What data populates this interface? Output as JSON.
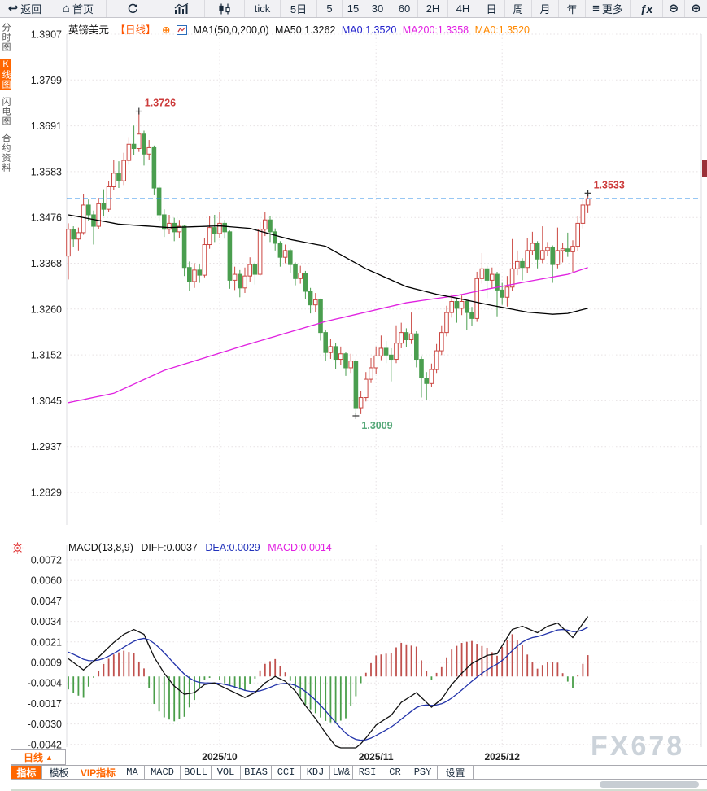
{
  "toolbar": {
    "items": [
      {
        "name": "back-button",
        "label": "返回",
        "glyph": "↩",
        "w": 62
      },
      {
        "name": "home-button",
        "label": "首页",
        "glyph": "⌂",
        "w": 69
      },
      {
        "name": "refresh-button",
        "svg": "refresh",
        "w": 65
      },
      {
        "name": "bar-chart-button",
        "svg": "bars",
        "w": 56
      },
      {
        "name": "candlestick-button",
        "svg": "candles",
        "w": 49
      },
      {
        "name": "tick-button",
        "label": "tick",
        "w": 44
      },
      {
        "name": "period-5d-button",
        "label": "5日",
        "w": 45
      },
      {
        "name": "period-5-button",
        "label": "5",
        "w": 31
      },
      {
        "name": "period-15-button",
        "label": "15",
        "w": 27
      },
      {
        "name": "period-30-button",
        "label": "30",
        "w": 33
      },
      {
        "name": "period-60-button",
        "label": "60",
        "w": 33
      },
      {
        "name": "period-2h-button",
        "label": "2H",
        "w": 37
      },
      {
        "name": "period-4h-button",
        "label": "4H",
        "w": 37
      },
      {
        "name": "period-day-button",
        "label": "日",
        "w": 33
      },
      {
        "name": "period-week-button",
        "label": "周",
        "w": 33
      },
      {
        "name": "period-month-button",
        "label": "月",
        "w": 33
      },
      {
        "name": "period-year-button",
        "label": "年",
        "w": 33
      },
      {
        "name": "more-button",
        "label": "更多",
        "glyph": "≡",
        "w": 55
      },
      {
        "name": "fx-button",
        "label": "ƒx",
        "fx": true,
        "w": 40
      },
      {
        "name": "zoom-out-button",
        "glyph": "⊖",
        "w": 27
      },
      {
        "name": "zoom-in-button",
        "glyph": "⊕",
        "w": 27
      }
    ]
  },
  "sidebar": {
    "items": [
      {
        "label": "分时图",
        "selected": false
      },
      {
        "label": "K线图",
        "selected": true
      },
      {
        "label": "闪电图",
        "selected": false
      },
      {
        "label": "合约资料",
        "selected": false
      }
    ]
  },
  "chart_header": {
    "symbol": "英镑美元",
    "period": "【日线】",
    "add_icon": "⊕",
    "ma_settings": "MA1(50,0,200,0)",
    "ma50": "MA50:1.3262",
    "ma0_blue": "MA0:1.3520",
    "ma200": "MA200:1.3358",
    "ma0_orange": "MA0:1.3520"
  },
  "macd_header": {
    "title": "MACD(13,8,9)",
    "diff": "DIFF:0.0037",
    "dea": "DEA:0.0029",
    "macd": "MACD:0.0014"
  },
  "period_tab": {
    "label": "日线",
    "arrow": "▲"
  },
  "bottom_tabs": [
    {
      "label": "指标",
      "style": "sel",
      "w": 38
    },
    {
      "label": "模板",
      "style": "",
      "w": 42
    },
    {
      "label": "VIP指标",
      "style": "vip",
      "w": 54
    },
    {
      "label": "MA",
      "style": "",
      "w": 30
    },
    {
      "label": "MACD",
      "style": "",
      "w": 44
    },
    {
      "label": "BOLL",
      "style": "",
      "w": 38
    },
    {
      "label": "VOL",
      "style": "",
      "w": 36
    },
    {
      "label": "BIAS",
      "style": "",
      "w": 38
    },
    {
      "label": "CCI",
      "style": "",
      "w": 36
    },
    {
      "label": "KDJ",
      "style": "",
      "w": 36
    },
    {
      "label": "LW&",
      "style": "",
      "w": 28
    },
    {
      "label": "RSI",
      "style": "",
      "w": 36
    },
    {
      "label": "CR",
      "style": "",
      "w": 32
    },
    {
      "label": "PSY",
      "style": "",
      "w": 36
    },
    {
      "label": "设置",
      "style": "",
      "w": 44
    }
  ],
  "watermark": "FX678",
  "colors": {
    "candle_up": "#cb4742",
    "candle_down": "#4a9e4f",
    "ma50": "#000000",
    "ma200": "#e020e0",
    "dea_blue": "#2233aa",
    "diff_black": "#111111",
    "price_line_blue": "#2f8fe8",
    "annotation_red": "#cc3b3b",
    "annotation_green": "#55a878",
    "hist_up": "#c0504d",
    "hist_down": "#4a9e4a",
    "grid": "#e7e2e4",
    "tick_text": "#222222"
  },
  "chart_data": {
    "type": "candlestick",
    "title": "英镑美元 日线 (GBP/USD Daily)",
    "y_ticks": [
      "1.3907",
      "1.3799",
      "1.3691",
      "1.3583",
      "1.3476",
      "1.3368",
      "1.3260",
      "1.3152",
      "1.3045",
      "1.2937",
      "1.2829"
    ],
    "macd_ticks": [
      "0.0072",
      "0.0060",
      "0.0047",
      "0.0034",
      "0.0021",
      "0.0009",
      "-0.0004",
      "-0.0017",
      "-0.0030",
      "-0.0042"
    ],
    "x_labels": [
      {
        "text": "2025/10",
        "index": 30
      },
      {
        "text": "2025/11",
        "index": 61
      },
      {
        "text": "2025/12",
        "index": 86
      }
    ],
    "last_price": 1.352,
    "annotations": [
      {
        "text": "1.3726",
        "index": 14,
        "price": 1.3726,
        "type": "high",
        "color": "red"
      },
      {
        "text": "1.3009",
        "index": 57,
        "price": 1.3009,
        "type": "low",
        "color": "green"
      },
      {
        "text": "1.3533",
        "index": 103,
        "price": 1.3533,
        "type": "high",
        "color": "red"
      }
    ],
    "candles": [
      [
        1.3385,
        1.3462,
        1.333,
        1.3448
      ],
      [
        1.3448,
        1.3455,
        1.3406,
        1.3425
      ],
      [
        1.3425,
        1.3452,
        1.3398,
        1.344
      ],
      [
        1.344,
        1.353,
        1.3435,
        1.3505
      ],
      [
        1.3505,
        1.3518,
        1.3468,
        1.3482
      ],
      [
        1.3482,
        1.3492,
        1.3412,
        1.3455
      ],
      [
        1.3455,
        1.3522,
        1.3448,
        1.3508
      ],
      [
        1.3508,
        1.3542,
        1.3478,
        1.3495
      ],
      [
        1.3495,
        1.3562,
        1.3488,
        1.3548
      ],
      [
        1.3548,
        1.3612,
        1.354,
        1.358
      ],
      [
        1.358,
        1.3608,
        1.3545,
        1.3562
      ],
      [
        1.3562,
        1.3628,
        1.3552,
        1.361
      ],
      [
        1.361,
        1.3665,
        1.36,
        1.3648
      ],
      [
        1.3648,
        1.3692,
        1.3622,
        1.3638
      ],
      [
        1.3638,
        1.3726,
        1.363,
        1.3672
      ],
      [
        1.3672,
        1.368,
        1.3598,
        1.3625
      ],
      [
        1.3625,
        1.3658,
        1.3612,
        1.364
      ],
      [
        1.364,
        1.3645,
        1.3528,
        1.3545
      ],
      [
        1.3545,
        1.3552,
        1.3468,
        1.3482
      ],
      [
        1.3482,
        1.3495,
        1.343,
        1.3448
      ],
      [
        1.3448,
        1.3482,
        1.3438,
        1.3462
      ],
      [
        1.3462,
        1.3475,
        1.342,
        1.3442
      ],
      [
        1.3442,
        1.347,
        1.3428,
        1.3455
      ],
      [
        1.3455,
        1.3458,
        1.3338,
        1.3358
      ],
      [
        1.3358,
        1.3372,
        1.3302,
        1.3325
      ],
      [
        1.3325,
        1.3368,
        1.331,
        1.3352
      ],
      [
        1.3352,
        1.3365,
        1.3322,
        1.334
      ],
      [
        1.334,
        1.3428,
        1.3335,
        1.3412
      ],
      [
        1.3412,
        1.3478,
        1.3402,
        1.3452
      ],
      [
        1.3452,
        1.3482,
        1.3418,
        1.3438
      ],
      [
        1.3438,
        1.3488,
        1.3428,
        1.3462
      ],
      [
        1.3462,
        1.347,
        1.3426,
        1.3442
      ],
      [
        1.3442,
        1.3445,
        1.3308,
        1.3328
      ],
      [
        1.3328,
        1.336,
        1.3305,
        1.3342
      ],
      [
        1.3342,
        1.3352,
        1.3288,
        1.331
      ],
      [
        1.331,
        1.3358,
        1.3298,
        1.3338
      ],
      [
        1.3338,
        1.3382,
        1.3325,
        1.3365
      ],
      [
        1.3365,
        1.3372,
        1.3318,
        1.3342
      ],
      [
        1.3342,
        1.3465,
        1.3338,
        1.3448
      ],
      [
        1.3448,
        1.3488,
        1.3432,
        1.347
      ],
      [
        1.347,
        1.3478,
        1.3418,
        1.3442
      ],
      [
        1.3442,
        1.345,
        1.3398,
        1.3415
      ],
      [
        1.3415,
        1.342,
        1.336,
        1.3382
      ],
      [
        1.3382,
        1.3412,
        1.3368,
        1.3398
      ],
      [
        1.3398,
        1.3402,
        1.3345,
        1.3365
      ],
      [
        1.3365,
        1.337,
        1.3316,
        1.3332
      ],
      [
        1.3332,
        1.3362,
        1.332,
        1.3345
      ],
      [
        1.3345,
        1.335,
        1.3283,
        1.3302
      ],
      [
        1.3302,
        1.331,
        1.325,
        1.327
      ],
      [
        1.327,
        1.3298,
        1.3253,
        1.3282
      ],
      [
        1.3282,
        1.3285,
        1.3186,
        1.3205
      ],
      [
        1.3205,
        1.3212,
        1.3138,
        1.3158
      ],
      [
        1.3158,
        1.319,
        1.3143,
        1.3172
      ],
      [
        1.3172,
        1.318,
        1.312,
        1.3142
      ],
      [
        1.3142,
        1.3172,
        1.3128,
        1.3155
      ],
      [
        1.3155,
        1.316,
        1.3103,
        1.3122
      ],
      [
        1.3122,
        1.3155,
        1.311,
        1.3138
      ],
      [
        1.3138,
        1.3142,
        1.3009,
        1.3028
      ],
      [
        1.3028,
        1.3068,
        1.3013,
        1.3052
      ],
      [
        1.3052,
        1.3112,
        1.3043,
        1.3095
      ],
      [
        1.3095,
        1.3145,
        1.3086,
        1.3122
      ],
      [
        1.3122,
        1.3172,
        1.3108,
        1.315
      ],
      [
        1.315,
        1.3198,
        1.314,
        1.3168
      ],
      [
        1.3168,
        1.3185,
        1.3133,
        1.3152
      ],
      [
        1.3152,
        1.3168,
        1.309,
        1.3142
      ],
      [
        1.3142,
        1.3222,
        1.3133,
        1.318
      ],
      [
        1.318,
        1.3228,
        1.3168,
        1.3205
      ],
      [
        1.3205,
        1.3215,
        1.317,
        1.3188
      ],
      [
        1.3188,
        1.3252,
        1.3178,
        1.3202
      ],
      [
        1.3202,
        1.3208,
        1.3123,
        1.3142
      ],
      [
        1.3142,
        1.3148,
        1.3052,
        1.3098
      ],
      [
        1.3098,
        1.3112,
        1.3046,
        1.3085
      ],
      [
        1.3085,
        1.3132,
        1.3076,
        1.3118
      ],
      [
        1.3118,
        1.3178,
        1.311,
        1.3162
      ],
      [
        1.3162,
        1.3222,
        1.3152,
        1.3205
      ],
      [
        1.3205,
        1.3268,
        1.3196,
        1.3252
      ],
      [
        1.3252,
        1.3295,
        1.324,
        1.3278
      ],
      [
        1.3278,
        1.3285,
        1.3228,
        1.3262
      ],
      [
        1.3262,
        1.3292,
        1.3246,
        1.3278
      ],
      [
        1.3278,
        1.3282,
        1.321,
        1.3252
      ],
      [
        1.3252,
        1.3265,
        1.322,
        1.3238
      ],
      [
        1.3238,
        1.3348,
        1.323,
        1.3332
      ],
      [
        1.3332,
        1.3392,
        1.332,
        1.3355
      ],
      [
        1.3355,
        1.3362,
        1.3286,
        1.3328
      ],
      [
        1.3328,
        1.3358,
        1.331,
        1.3342
      ],
      [
        1.3342,
        1.3348,
        1.3243,
        1.3305
      ],
      [
        1.3305,
        1.3322,
        1.327,
        1.3288
      ],
      [
        1.3288,
        1.3338,
        1.3266,
        1.3312
      ],
      [
        1.3312,
        1.3425,
        1.3303,
        1.3355
      ],
      [
        1.3355,
        1.3398,
        1.334,
        1.3372
      ],
      [
        1.3372,
        1.338,
        1.3328,
        1.3358
      ],
      [
        1.3358,
        1.3428,
        1.3346,
        1.3398
      ],
      [
        1.3398,
        1.3442,
        1.3388,
        1.3415
      ],
      [
        1.3415,
        1.342,
        1.3356,
        1.3378
      ],
      [
        1.3378,
        1.3455,
        1.3368,
        1.3398
      ],
      [
        1.3398,
        1.3418,
        1.3386,
        1.3405
      ],
      [
        1.3405,
        1.341,
        1.3322,
        1.3365
      ],
      [
        1.3365,
        1.3452,
        1.3356,
        1.3398
      ],
      [
        1.3398,
        1.3415,
        1.337,
        1.3402
      ],
      [
        1.3402,
        1.344,
        1.3383,
        1.3395
      ],
      [
        1.3395,
        1.3422,
        1.3348,
        1.3408
      ],
      [
        1.3408,
        1.3478,
        1.3396,
        1.3462
      ],
      [
        1.3462,
        1.3518,
        1.345,
        1.3505
      ],
      [
        1.3505,
        1.3533,
        1.3486,
        1.352
      ]
    ],
    "ma50_points": [
      [
        0,
        1.3482
      ],
      [
        10,
        1.346
      ],
      [
        20,
        1.3452
      ],
      [
        30,
        1.3456
      ],
      [
        36,
        1.345
      ],
      [
        44,
        1.3424
      ],
      [
        51,
        1.3408
      ],
      [
        59,
        1.3355
      ],
      [
        67,
        1.3313
      ],
      [
        73,
        1.3295
      ],
      [
        77,
        1.3286
      ],
      [
        83,
        1.3271
      ],
      [
        91,
        1.3253
      ],
      [
        96,
        1.3248
      ],
      [
        99,
        1.325
      ],
      [
        103,
        1.3262
      ]
    ],
    "ma200_points": [
      [
        0,
        1.304
      ],
      [
        9,
        1.3062
      ],
      [
        19,
        1.3116
      ],
      [
        35,
        1.3175
      ],
      [
        51,
        1.3231
      ],
      [
        67,
        1.3275
      ],
      [
        77,
        1.3292
      ],
      [
        83,
        1.3307
      ],
      [
        91,
        1.3325
      ],
      [
        99,
        1.3342
      ],
      [
        103,
        1.3358
      ]
    ],
    "macd": {
      "diff_points": [
        [
          0,
          0.0011
        ],
        [
          3,
          0.0004
        ],
        [
          6,
          0.0012
        ],
        [
          9,
          0.0021
        ],
        [
          11,
          0.0026
        ],
        [
          13,
          0.0029
        ],
        [
          15,
          0.0026
        ],
        [
          17,
          0.0012
        ],
        [
          19,
          0.0002
        ],
        [
          21,
          -0.0006
        ],
        [
          23,
          -0.0011
        ],
        [
          25,
          -0.001
        ],
        [
          27,
          -0.0005
        ],
        [
          29,
          -0.0004
        ],
        [
          31,
          -0.0007
        ],
        [
          33,
          -0.001
        ],
        [
          35,
          -0.0013
        ],
        [
          37,
          -0.001
        ],
        [
          39,
          -0.0004
        ],
        [
          41,
          0.0
        ],
        [
          43,
          -0.0003
        ],
        [
          45,
          -0.0009
        ],
        [
          47,
          -0.0018
        ],
        [
          49,
          -0.0026
        ],
        [
          51,
          -0.0035
        ],
        [
          53,
          -0.0043
        ],
        [
          55,
          -0.0048
        ],
        [
          57,
          -0.0045
        ],
        [
          59,
          -0.0038
        ],
        [
          61,
          -0.003
        ],
        [
          64,
          -0.0024
        ],
        [
          66,
          -0.0016
        ],
        [
          69,
          -0.001
        ],
        [
          72,
          -0.0019
        ],
        [
          74,
          -0.0014
        ],
        [
          76,
          -0.0005
        ],
        [
          78,
          0.0002
        ],
        [
          80,
          0.0008
        ],
        [
          83,
          0.0013
        ],
        [
          85,
          0.0014
        ],
        [
          88,
          0.0029
        ],
        [
          90,
          0.0031
        ],
        [
          93,
          0.0027
        ],
        [
          95,
          0.0031
        ],
        [
          97,
          0.0033
        ],
        [
          100,
          0.0024
        ],
        [
          103,
          0.0037
        ]
      ],
      "dea_period": 9,
      "hist_scale": 2
    }
  }
}
